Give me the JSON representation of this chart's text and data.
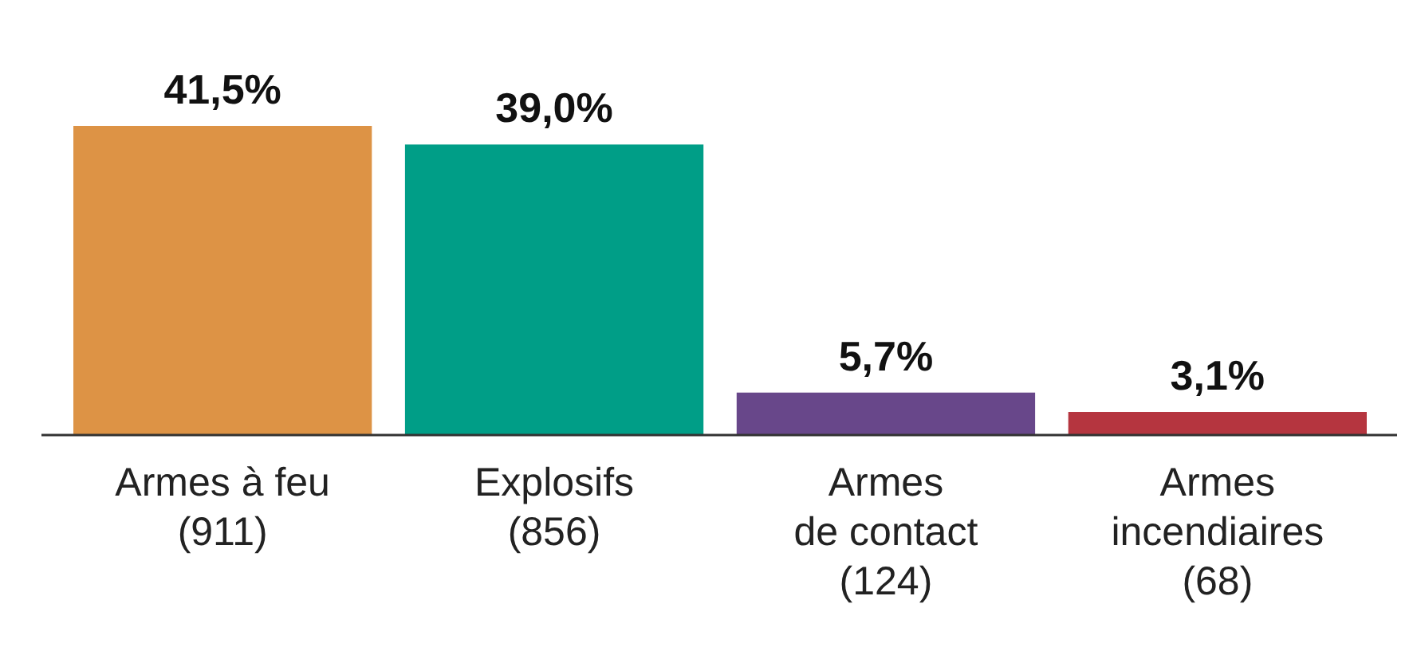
{
  "chart_data": {
    "type": "bar",
    "categories": [
      "Armes à feu\n(911)",
      "Explosifs\n(856)",
      "Armes\nde contact\n(124)",
      "Armes\nincendiaires\n(68)"
    ],
    "values": [
      41.5,
      39.0,
      5.7,
      3.1
    ],
    "colors": [
      "#dd9345",
      "#009e87",
      "#68478a",
      "#b5353f"
    ],
    "value_labels": [
      "41,5%",
      "39,0%",
      "5,7%",
      "3,1%"
    ]
  }
}
